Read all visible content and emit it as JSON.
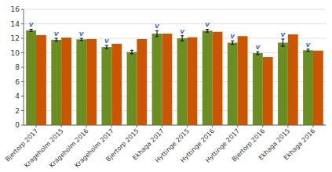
{
  "chart_data": {
    "type": "bar",
    "categories": [
      "Bjertorp 2017",
      "Krageholm 2015",
      "Krageholm 2016",
      "Krageholm 2017",
      "Bjertorp 2015",
      "Ekhaga 2017",
      "Hyttinge 2015",
      "Hyttinge 2016",
      "Hyttinge 2017",
      "Bjertorp 2016",
      "Ekhaga 2015",
      "Ekhaga 2016"
    ],
    "series": [
      {
        "color": "#6B8E23",
        "values": [
          13.1,
          11.8,
          11.85,
          10.8,
          10.1,
          12.65,
          12.0,
          13.05,
          11.4,
          9.95,
          11.4,
          10.35
        ],
        "errors": [
          0.15,
          0.2,
          0.15,
          0.2,
          0.25,
          0.4,
          0.35,
          0.2,
          0.25,
          0.2,
          0.5,
          0.15
        ]
      },
      {
        "color": "#CC5500",
        "values": [
          12.45,
          12.1,
          11.9,
          11.25,
          11.9,
          12.65,
          12.15,
          12.9,
          12.3,
          9.4,
          12.55,
          10.3
        ]
      }
    ],
    "annotations": [
      {
        "text": "v",
        "category": "Bjertorp 2017",
        "color": "#4472C4"
      },
      {
        "text": "v",
        "category": "Krageholm 2015",
        "color": "#4472C4"
      },
      {
        "text": "v",
        "category": "Krageholm 2016",
        "color": "#4472C4"
      },
      {
        "text": "v",
        "category": "Krageholm 2017",
        "color": "#4472C4"
      },
      {
        "text": "v",
        "category": "Ekhaga 2017",
        "color": "#4472C4"
      },
      {
        "text": "v",
        "category": "Hyttinge 2015",
        "color": "#4472C4"
      },
      {
        "text": "v",
        "category": "Hyttinge 2016",
        "color": "#4472C4"
      },
      {
        "text": "v",
        "category": "Hyttinge 2017",
        "color": "#4472C4"
      },
      {
        "text": "v",
        "category": "Bjertorp 2016",
        "color": "#4472C4"
      },
      {
        "text": "v",
        "category": "Ekhaga 2015",
        "color": "#4472C4"
      },
      {
        "text": "v",
        "category": "Ekhaga 2016",
        "color": "#4472C4"
      }
    ],
    "ylim": [
      0,
      16
    ],
    "yticks": [
      0,
      2,
      4,
      6,
      8,
      10,
      12,
      14,
      16
    ],
    "grid": true
  }
}
